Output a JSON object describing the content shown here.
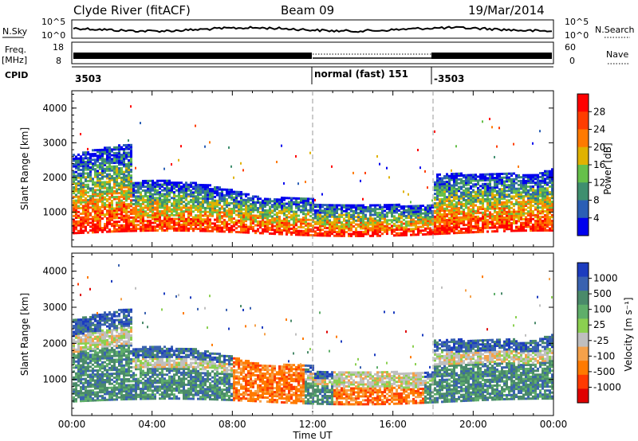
{
  "header": {
    "station": "Clyde River (fitACF)",
    "beam": "Beam 09",
    "date": "19/Mar/2014"
  },
  "top_panels": {
    "nsky_label": "N.Sky",
    "nsky_ticks": [
      "10^5",
      "10^0"
    ],
    "nsearch_label": "N.Search",
    "nsearch_ticks": [
      "10^5",
      "10^0"
    ],
    "freq_label": "Freq.",
    "freq_unit": "[MHz]",
    "freq_ticks": [
      "18",
      "8"
    ],
    "nave_label": "Nave",
    "nave_ticks": [
      "60",
      "0"
    ],
    "cpid_label": "CPID",
    "cpid_segments": [
      {
        "label": "3503",
        "start_hour": 0,
        "end_hour": 12
      },
      {
        "label": "normal (fast) 151",
        "start_hour": 12,
        "end_hour": 18
      },
      {
        "label": "-3503",
        "start_hour": 18,
        "end_hour": 24
      }
    ]
  },
  "power_colorbar": {
    "title": "Power [dB]",
    "ticks": [
      "28",
      "24",
      "20",
      "16",
      "12",
      "8",
      "4"
    ],
    "colors": [
      "#0000ee",
      "#2b5fb5",
      "#3f8f6f",
      "#66c04a",
      "#e0b200",
      "#ff7a00",
      "#ff3d00",
      "#ff0000"
    ]
  },
  "velocity_colorbar": {
    "title": "Velocity [m s⁻¹]",
    "ticks": [
      "1000",
      "500",
      "100",
      "25",
      "-25",
      "-100",
      "-500",
      "-1000"
    ],
    "colors": [
      "#1c3cbf",
      "#3a62b0",
      "#4a8a6a",
      "#5fae6a",
      "#8bd050",
      "#bfbfbf",
      "#f5a14a",
      "#ff7a00",
      "#ff3a00",
      "#e00000"
    ]
  },
  "chart_data": [
    {
      "type": "heatmap",
      "name": "power",
      "x_range_hours": [
        0,
        24
      ],
      "xticks": [
        "00:00",
        "04:00",
        "08:00",
        "12:00",
        "16:00",
        "20:00",
        "00:00"
      ],
      "ylabel": "Slant Range [km]",
      "ylim": [
        0,
        4500
      ],
      "yticks": [
        1000,
        2000,
        3000,
        4000
      ],
      "clim": [
        0,
        30
      ],
      "mode_change_hours": [
        12,
        18
      ],
      "grid": false
    },
    {
      "type": "heatmap",
      "name": "velocity",
      "x_range_hours": [
        0,
        24
      ],
      "xticks": [
        "00:00",
        "04:00",
        "08:00",
        "12:00",
        "16:00",
        "20:00",
        "00:00"
      ],
      "xlabel": "Time UT",
      "ylabel": "Slant Range [km]",
      "ylim": [
        0,
        4500
      ],
      "yticks": [
        1000,
        2000,
        3000,
        4000
      ],
      "clim": [
        -1000,
        1000
      ],
      "mode_change_hours": [
        12,
        18
      ],
      "grid": false
    }
  ]
}
